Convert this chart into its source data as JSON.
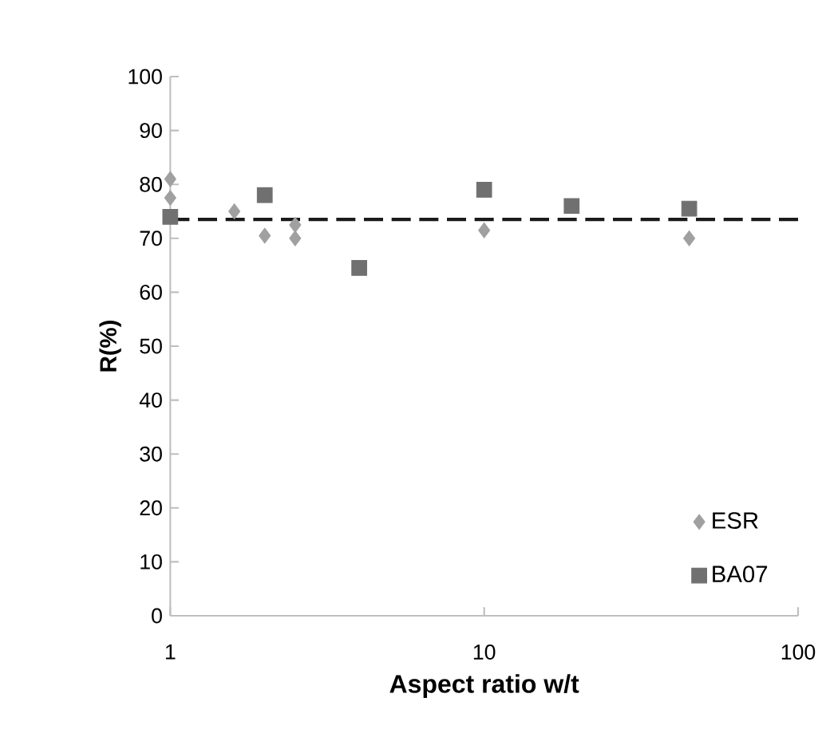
{
  "chart_data": {
    "type": "scatter",
    "xlabel": "Aspect ratio   w/t",
    "ylabel": "R(%)",
    "log": "x",
    "xlim": [
      1,
      100
    ],
    "xticks": [
      1,
      10,
      100
    ],
    "ylim": [
      0,
      100
    ],
    "yticks": [
      0,
      10,
      20,
      30,
      40,
      50,
      60,
      70,
      80,
      90,
      100
    ],
    "grid": false,
    "legend": "bottom right",
    "series": [
      {
        "name": "ESR",
        "color": "#a0a0a0",
        "marker": "diamond",
        "x": [
          1,
          1,
          1.6,
          2,
          2.5,
          2.5,
          10,
          45
        ],
        "values": [
          81,
          77.5,
          75,
          70.5,
          72.5,
          70,
          71.5,
          70
        ]
      },
      {
        "name": "BA07",
        "color": "#707070",
        "marker": "square",
        "x": [
          1,
          2,
          4,
          10,
          19,
          45
        ],
        "values": [
          74,
          78,
          64.5,
          79,
          76,
          75.5
        ]
      }
    ],
    "ref_lines": [
      {
        "axis": "y",
        "value": 73.5,
        "color": "#1a1a1a",
        "line_style": "dashed"
      }
    ]
  }
}
